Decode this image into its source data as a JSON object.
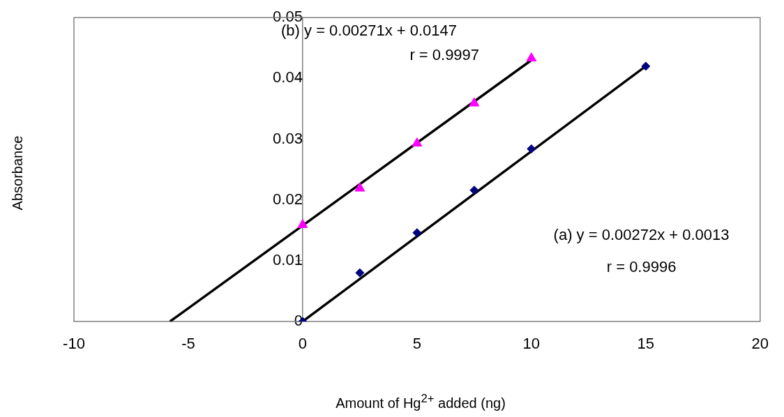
{
  "chart_data": {
    "type": "scatter",
    "xlabel": "Amount of Hg$^{2+}$ added (ng)",
    "ylabel": "Absorbance",
    "xlim": [
      -10,
      20
    ],
    "xticks": [
      -10,
      -5,
      0,
      5,
      10,
      15,
      20
    ],
    "ylim": [
      0,
      0.05
    ],
    "yticks": [
      0,
      0.01,
      0.02,
      0.03,
      0.04,
      0.05
    ],
    "series": [
      {
        "color": "#000080",
        "marker": "diamond",
        "x": [
          0,
          2.5,
          5,
          7.5,
          10,
          15
        ],
        "values": [
          0,
          0.008,
          0.0146,
          0.0216,
          0.0284,
          0.042
        ]
      },
      {
        "color": "#ff00ff",
        "marker": "triangle",
        "x": [
          0,
          2.5,
          5,
          7.5,
          10
        ],
        "values": [
          0.0159,
          0.0219,
          0.0293,
          0.0359,
          0.0433
        ]
      },
      {
        "type": "line",
        "color": "#000000",
        "marker": "none",
        "x": [
          0,
          15
        ],
        "values": [
          0,
          0.042
        ]
      },
      {
        "type": "line",
        "color": "#000000",
        "marker": "none",
        "x": [
          -5.8,
          10
        ],
        "values": [
          0,
          0.043
        ]
      }
    ],
    "annotations": [
      "(b) y = 0.00271x + 0.0147",
      "r = 0.9997",
      "(a) y = 0.00272x + 0.0013",
      "r = 0.9996"
    ]
  }
}
